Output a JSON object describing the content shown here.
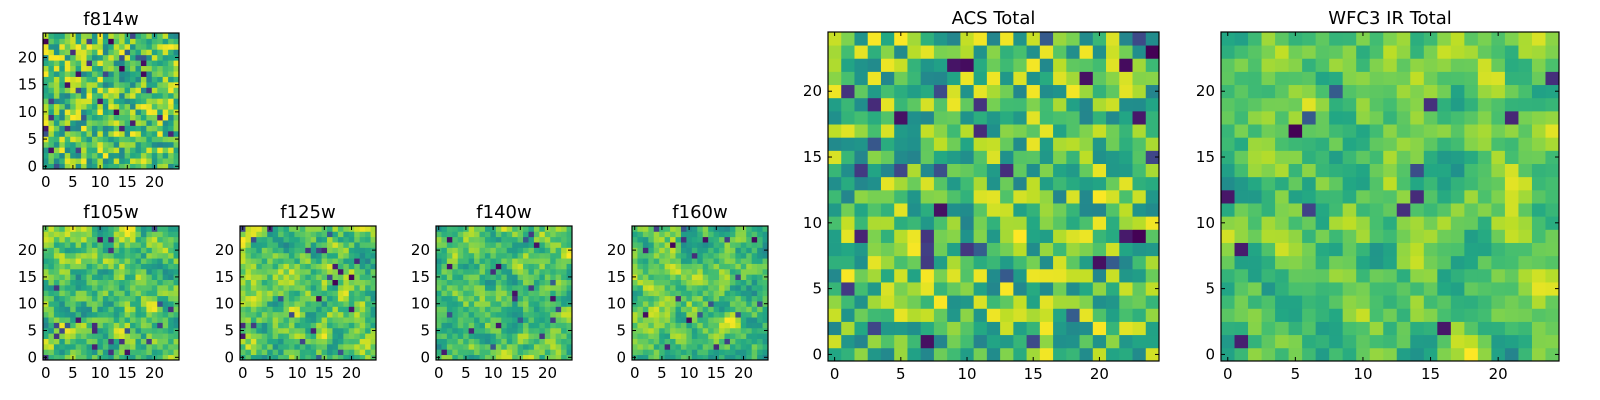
{
  "chart_data": [
    {
      "type": "heatmap",
      "title": "f814w",
      "grid": 25,
      "ylim": [
        0,
        24
      ],
      "xticks": [
        "0",
        "5",
        "10",
        "15",
        "20"
      ],
      "yticks": [
        "0",
        "5",
        "10",
        "15",
        "20"
      ],
      "seed": 11,
      "blur": 0,
      "dark_frac": 0.06
    },
    {
      "type": "heatmap",
      "title": "f105w",
      "grid": 25,
      "ylim": [
        0,
        24
      ],
      "xticks": [
        "0",
        "5",
        "10",
        "15",
        "20"
      ],
      "yticks": [
        "0",
        "5",
        "10",
        "15",
        "20"
      ],
      "seed": 23,
      "blur": 1,
      "dark_frac": 0.03
    },
    {
      "type": "heatmap",
      "title": "f125w",
      "grid": 25,
      "ylim": [
        0,
        24
      ],
      "xticks": [
        "0",
        "5",
        "10",
        "15",
        "20"
      ],
      "yticks": [
        "0",
        "5",
        "10",
        "15",
        "20"
      ],
      "seed": 37,
      "blur": 1,
      "dark_frac": 0.04
    },
    {
      "type": "heatmap",
      "title": "f140w",
      "grid": 25,
      "ylim": [
        0,
        24
      ],
      "xticks": [
        "0",
        "5",
        "10",
        "15",
        "20"
      ],
      "yticks": [
        "0",
        "5",
        "10",
        "15",
        "20"
      ],
      "seed": 41,
      "blur": 1,
      "dark_frac": 0.04
    },
    {
      "type": "heatmap",
      "title": "f160w",
      "grid": 25,
      "ylim": [
        0,
        24
      ],
      "xticks": [
        "0",
        "5",
        "10",
        "15",
        "20"
      ],
      "yticks": [
        "0",
        "5",
        "10",
        "15",
        "20"
      ],
      "seed": 53,
      "blur": 1,
      "dark_frac": 0.04
    },
    {
      "type": "heatmap",
      "title": "ACS Total",
      "grid": 25,
      "ylim": [
        0,
        24
      ],
      "xticks": [
        "0",
        "5",
        "10",
        "15",
        "20"
      ],
      "yticks": [
        "0",
        "5",
        "10",
        "15",
        "20"
      ],
      "seed": 67,
      "blur": 0,
      "dark_frac": 0.04
    },
    {
      "type": "heatmap",
      "title": "WFC3 IR Total",
      "grid": 25,
      "ylim": [
        0,
        24
      ],
      "xticks": [
        "0",
        "5",
        "10",
        "15",
        "20"
      ],
      "yticks": [
        "0",
        "5",
        "10",
        "15",
        "20"
      ],
      "seed": 79,
      "blur": 1,
      "dark_frac": 0.035
    }
  ]
}
